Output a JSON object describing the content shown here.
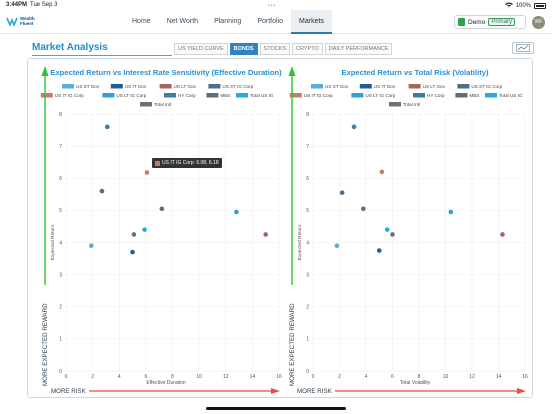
{
  "status": {
    "time": "3:44PM",
    "date": "Tue Sep 3",
    "battery": "100%"
  },
  "app": {
    "logo_line1": "Wealth",
    "logo_line2": "Fluent"
  },
  "nav": {
    "items": [
      "Home",
      "Net Worth",
      "Planning",
      "Portfolio",
      "Markets"
    ],
    "active": "Markets"
  },
  "account": {
    "name": "Demo",
    "badge": "Primary",
    "avatar": "WF"
  },
  "page": {
    "title": "Market Analysis",
    "tabs": [
      "US YIELD CURVE",
      "BONDS",
      "STOCKS",
      "CRYPTO",
      "DAILY PERFORMANCE"
    ],
    "active_tab": "BONDS"
  },
  "tooltip": {
    "text": "US IT IG Corp: 6.08, 6.18"
  },
  "colors": {
    "US ST Gov": "#5aaed8",
    "US IT Gov": "#1f5f99",
    "US LT Gov": "#a5675a",
    "US ST IG Corp": "#4a6f87",
    "US IT IG Corp": "#c47e68",
    "US LT IG Corp": "#2fa0d8",
    "HY Corp": "#3b7ea6",
    "MBS": "#5e6f7a",
    "Total US IG": "#27a9e1",
    "Total Intl": "#6b6f7a"
  },
  "chart_data": [
    {
      "type": "scatter",
      "title": "Expected Return vs Interest Rate Sensitivity (Effective Duration)",
      "xlabel": "Effective Duration",
      "ylabel": "Expected Return",
      "xlim": [
        0,
        16
      ],
      "ylim": [
        0,
        8
      ],
      "xticks": [
        "0",
        "2",
        "4",
        "6",
        "8",
        "10",
        "12",
        "14",
        "16"
      ],
      "yticks": [
        "0",
        "1",
        "2",
        "3",
        "4",
        "5",
        "6",
        "7",
        "8"
      ],
      "y_annotation": "MORE EXPECTED REWARD",
      "x_annotation": "MORE RISK",
      "legend": [
        "US ST Gov",
        "US IT Gov",
        "US LT Gov",
        "US ST IG Corp",
        "US IT IG Corp",
        "US LT IG Corp",
        "HY Corp",
        "MBS",
        "Total US IG",
        "Total Intl"
      ],
      "series": [
        {
          "name": "US ST Gov",
          "x": 1.9,
          "y": 3.9
        },
        {
          "name": "US IT Gov",
          "x": 5.0,
          "y": 3.7
        },
        {
          "name": "US LT Gov",
          "x": 15.0,
          "y": 4.25
        },
        {
          "name": "US ST IG Corp",
          "x": 2.7,
          "y": 5.6
        },
        {
          "name": "US IT IG Corp",
          "x": 6.08,
          "y": 6.18
        },
        {
          "name": "US LT IG Corp",
          "x": 12.8,
          "y": 4.95
        },
        {
          "name": "HY Corp",
          "x": 3.1,
          "y": 7.6
        },
        {
          "name": "MBS",
          "x": 7.2,
          "y": 5.05
        },
        {
          "name": "Total US IG",
          "x": 5.9,
          "y": 4.4
        },
        {
          "name": "Total Intl",
          "x": 5.1,
          "y": 4.25
        }
      ]
    },
    {
      "type": "scatter",
      "title": "Expected Return vs Total Risk (Volatility)",
      "xlabel": "Total Volatility",
      "ylabel": "Expected Return",
      "xlim": [
        0,
        16
      ],
      "ylim": [
        0,
        8
      ],
      "xticks": [
        "0",
        "2",
        "4",
        "6",
        "8",
        "10",
        "12",
        "14",
        "16"
      ],
      "yticks": [
        "0",
        "1",
        "2",
        "3",
        "4",
        "5",
        "6",
        "7",
        "8"
      ],
      "y_annotation": "MORE EXPECTED REWARD",
      "x_annotation": "MORE RISK",
      "legend": [
        "US ST Gov",
        "US IT Gov",
        "US LT Gov",
        "US ST IG Corp",
        "US IT IG Corp",
        "US LT IG Corp",
        "HY Corp",
        "MBS",
        "Total US IG",
        "Total Intl"
      ],
      "series": [
        {
          "name": "US ST Gov",
          "x": 1.8,
          "y": 3.9
        },
        {
          "name": "US IT Gov",
          "x": 5.0,
          "y": 3.75
        },
        {
          "name": "US LT Gov",
          "x": 14.3,
          "y": 4.25
        },
        {
          "name": "US ST IG Corp",
          "x": 2.2,
          "y": 5.55
        },
        {
          "name": "US IT IG Corp",
          "x": 5.2,
          "y": 6.2
        },
        {
          "name": "US LT IG Corp",
          "x": 10.4,
          "y": 4.95
        },
        {
          "name": "HY Corp",
          "x": 3.1,
          "y": 7.6
        },
        {
          "name": "MBS",
          "x": 3.8,
          "y": 5.05
        },
        {
          "name": "Total US IG",
          "x": 5.6,
          "y": 4.4
        },
        {
          "name": "Total Intl",
          "x": 6.0,
          "y": 4.25
        }
      ]
    }
  ]
}
